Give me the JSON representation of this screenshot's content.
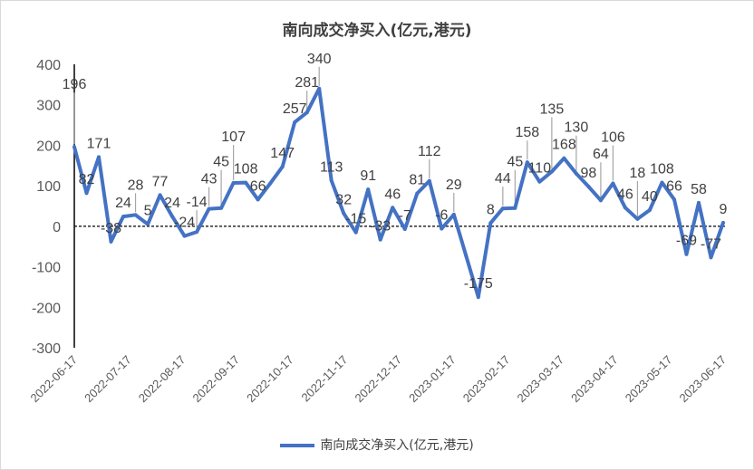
{
  "chart_data": {
    "type": "line",
    "title": "南向成交净买入(亿元,港元)",
    "xlabel": "",
    "ylabel": "",
    "ylim": [
      -300,
      400
    ],
    "yticks": [
      400,
      300,
      200,
      100,
      0,
      -100,
      -200,
      -300
    ],
    "xtick_labels": [
      "2022-06-17",
      "2022-07-17",
      "2022-08-17",
      "2022-09-17",
      "2022-10-17",
      "2022-11-17",
      "2022-12-17",
      "2023-01-17",
      "2023-02-17",
      "2023-03-17",
      "2023-04-17",
      "2023-05-17",
      "2023-06-17"
    ],
    "legend": {
      "position": "bottom",
      "entries": [
        "南向成交净买入(亿元,港元)"
      ]
    },
    "grid": false,
    "zero_line": "dashed",
    "color": "#4472c4",
    "series": [
      {
        "name": "南向成交净买入(亿元,港元)",
        "values": [
          196,
          82,
          171,
          -38,
          24,
          28,
          5,
          77,
          24,
          -24,
          -14,
          43,
          45,
          107,
          108,
          66,
          106,
          147,
          257,
          281,
          340,
          113,
          32,
          -15,
          91,
          -33,
          46,
          -7,
          81,
          112,
          -6,
          29,
          -73,
          -175,
          8,
          44,
          45,
          158,
          110,
          135,
          168,
          130,
          98,
          64,
          106,
          46,
          18,
          40,
          108,
          66,
          -69,
          58,
          -77,
          9
        ],
        "labels": [
          "196",
          "82",
          "171",
          "-38",
          "24",
          "28",
          "5",
          "77",
          "24",
          "-24",
          "-14",
          "43",
          "45",
          "107",
          "108",
          "66",
          null,
          "147",
          "257",
          "281",
          "340",
          "113",
          "32",
          "-15",
          "91",
          "-33",
          "46",
          "-7",
          "81",
          "112",
          "-6",
          "29",
          null,
          "-175",
          "8",
          "44",
          "45",
          "158",
          "110",
          "135",
          "168",
          "130",
          "98",
          "64",
          "106",
          "46",
          "18",
          "40",
          "108",
          "66",
          "-69",
          "58",
          "-77",
          "9"
        ]
      }
    ]
  }
}
